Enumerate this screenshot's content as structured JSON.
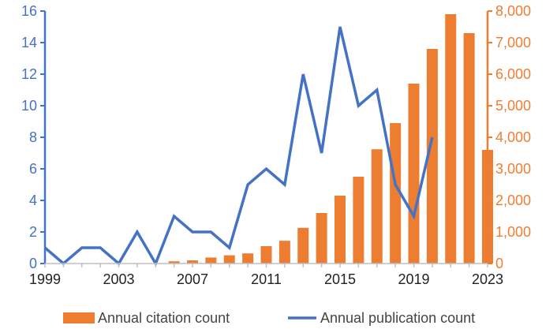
{
  "chart_data": {
    "type": "bar+line",
    "title": "",
    "xlabel": "",
    "ylabel_left": "",
    "ylabel_right": "",
    "x_range": [
      1999,
      2023
    ],
    "x_ticks": [
      "1999",
      "2003",
      "2007",
      "2011",
      "2015",
      "2019",
      "2023"
    ],
    "left_axis": {
      "min": 0,
      "max": 16,
      "step": 2,
      "tick_labels": [
        "0",
        "2",
        "4",
        "6",
        "8",
        "10",
        "12",
        "14",
        "16"
      ],
      "color": "#4472c4"
    },
    "right_axis": {
      "min": 0,
      "max": 8000,
      "step": 1000,
      "tick_labels": [
        "0",
        "1,000",
        "2,000",
        "3,000",
        "4,000",
        "5,000",
        "6,000",
        "7,000",
        "8,000"
      ],
      "color": "#ed7d31"
    },
    "series": [
      {
        "name": "Annual citation count",
        "type": "bar",
        "axis": "right",
        "color": "#ed7d31",
        "x": [
          2006,
          2007,
          2008,
          2009,
          2010,
          2011,
          2012,
          2013,
          2014,
          2015,
          2016,
          2017,
          2018,
          2019,
          2020,
          2021,
          2022,
          2023
        ],
        "values": [
          70,
          100,
          190,
          260,
          320,
          550,
          720,
          1130,
          1600,
          2150,
          2750,
          3620,
          4450,
          5700,
          6800,
          7900,
          7300,
          3600
        ]
      },
      {
        "name": "Annual publication count",
        "type": "line",
        "axis": "left",
        "color": "#4472c4",
        "x": [
          1999,
          2000,
          2001,
          2002,
          2003,
          2004,
          2005,
          2006,
          2007,
          2008,
          2009,
          2010,
          2011,
          2012,
          2013,
          2014,
          2015,
          2016,
          2017,
          2018,
          2019,
          2020
        ],
        "values": [
          1,
          0,
          1,
          1,
          0,
          2,
          0,
          3,
          2,
          2,
          1,
          5,
          6,
          5,
          12,
          7,
          15,
          10,
          11,
          5,
          3,
          8
        ]
      }
    ],
    "grid": false,
    "legend": "bottom"
  }
}
